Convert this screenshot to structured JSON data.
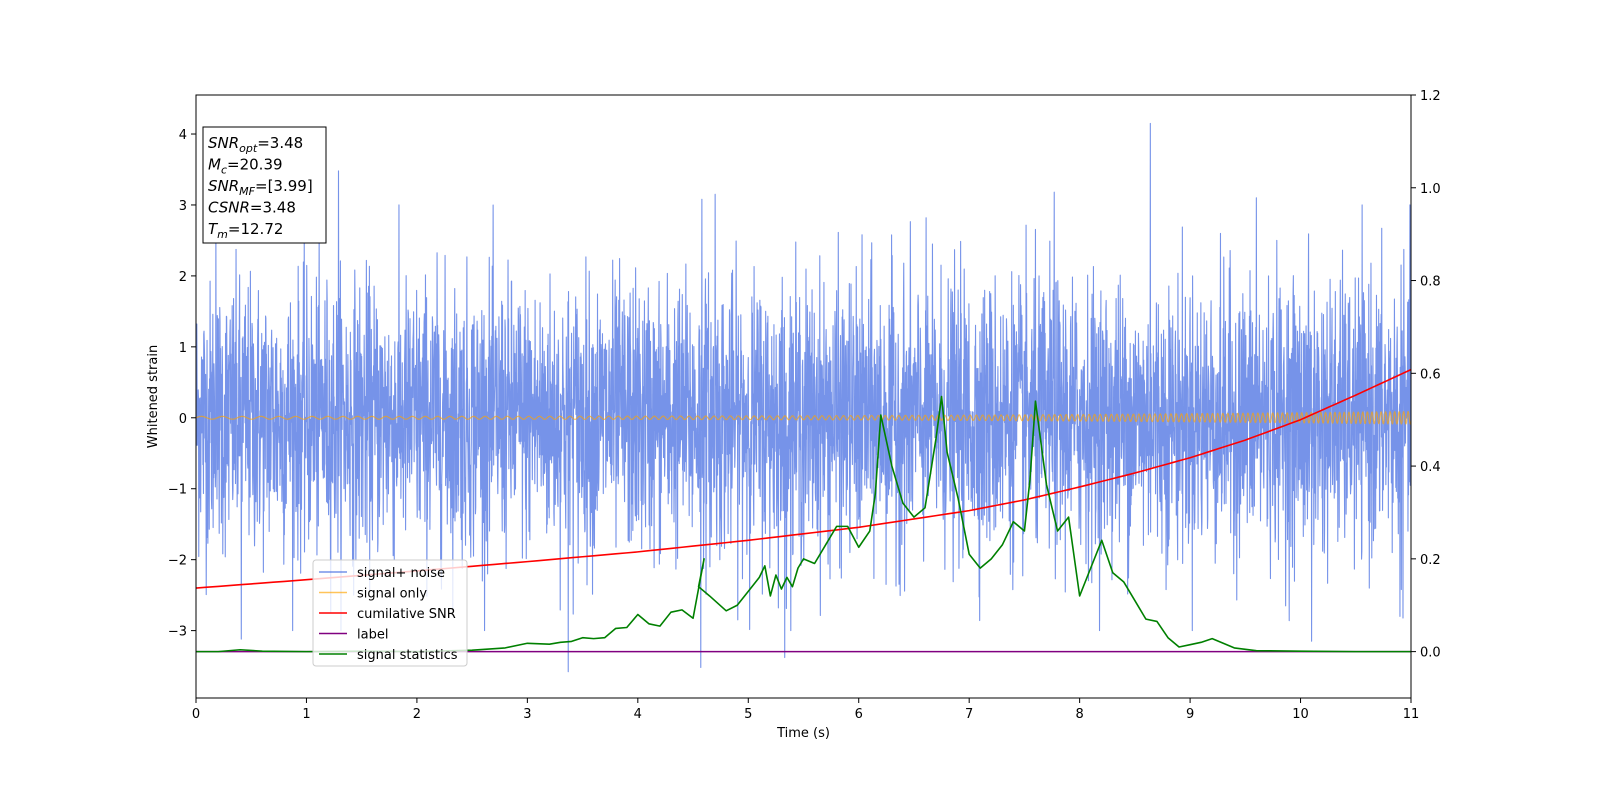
{
  "chart_data": {
    "type": "line",
    "xlabel": "Time (s)",
    "ylabel": "Whitened strain",
    "xlim": [
      0,
      11
    ],
    "ylim_left": [
      -3.95,
      4.55
    ],
    "ylim_right": [
      -0.1,
      1.2
    ],
    "x_ticks": [
      "0",
      "1",
      "2",
      "3",
      "4",
      "5",
      "6",
      "7",
      "8",
      "9",
      "10",
      "11"
    ],
    "y_ticks_left": [
      {
        "value": -3,
        "label": "−3"
      },
      {
        "value": -2,
        "label": "−2"
      },
      {
        "value": -1,
        "label": "−1"
      },
      {
        "value": 0,
        "label": "0"
      },
      {
        "value": 1,
        "label": "1"
      },
      {
        "value": 2,
        "label": "2"
      },
      {
        "value": 3,
        "label": "3"
      },
      {
        "value": 4,
        "label": "4"
      }
    ],
    "y_ticks_right": [
      {
        "value": 0.0,
        "label": "0.0"
      },
      {
        "value": 0.2,
        "label": "0.2"
      },
      {
        "value": 0.4,
        "label": "0.4"
      },
      {
        "value": 0.6,
        "label": "0.6"
      },
      {
        "value": 0.8,
        "label": "0.8"
      },
      {
        "value": 1.0,
        "label": "1.0"
      },
      {
        "value": 1.2,
        "label": "1.2"
      }
    ],
    "grid": false,
    "legend_position": "lower-left",
    "annotation": {
      "lines": [
        {
          "main": "SNR",
          "sub": "opt",
          "rest": "=3.48"
        },
        {
          "main": "M",
          "sub": "c",
          "rest": "=20.39"
        },
        {
          "main": "SNR",
          "sub": "MF",
          "rest": "=[3.99]"
        },
        {
          "main": "CSNR",
          "sub": "",
          "rest": "=3.48"
        },
        {
          "main": "T",
          "sub": "m",
          "rest": "=12.72"
        }
      ]
    },
    "series": [
      {
        "name": "signal+ noise",
        "color": "#4169e1",
        "axis": "left",
        "kind": "noise",
        "typical_range": [
          -1.7,
          1.7
        ],
        "peaks": [
          {
            "x": 0.18,
            "y": 2.6
          },
          {
            "x": 0.41,
            "y": -3.12
          },
          {
            "x": 1.29,
            "y": 3.48
          },
          {
            "x": 3.37,
            "y": -3.58
          },
          {
            "x": 4.58,
            "y": 3.08
          },
          {
            "x": 4.57,
            "y": -3.52
          },
          {
            "x": 4.7,
            "y": 3.15
          },
          {
            "x": 5.33,
            "y": -3.38
          },
          {
            "x": 7.77,
            "y": 3.18
          },
          {
            "x": 8.64,
            "y": 4.15
          },
          {
            "x": 9.6,
            "y": 3.1
          },
          {
            "x": 10.1,
            "y": -3.15
          },
          {
            "x": 10.9,
            "y": -2.8
          }
        ]
      },
      {
        "name": "signal only",
        "color": "#ffa500",
        "axis": "left",
        "kind": "chirp",
        "amplitude_start": 0.02,
        "amplitude_end": 0.09
      },
      {
        "name": "cumilative SNR",
        "color": "#ff0000",
        "axis": "right",
        "x": [
          0,
          1,
          2,
          3,
          4,
          5,
          6,
          7,
          7.5,
          8,
          8.5,
          9,
          9.5,
          10,
          10.5,
          11
        ],
        "y": [
          0.137,
          0.155,
          0.174,
          0.194,
          0.215,
          0.24,
          0.268,
          0.304,
          0.327,
          0.355,
          0.385,
          0.418,
          0.456,
          0.5,
          0.553,
          0.608
        ]
      },
      {
        "name": "label",
        "color": "#800080",
        "axis": "right",
        "x": [
          0,
          11
        ],
        "y": [
          0.0,
          0.0
        ]
      },
      {
        "name": "signal statistics",
        "color": "#008000",
        "axis": "right",
        "x": [
          0,
          0.2,
          0.4,
          0.6,
          1.0,
          1.5,
          2.0,
          2.5,
          2.8,
          3.0,
          3.2,
          3.3,
          3.4,
          3.5,
          3.6,
          3.7,
          3.8,
          3.9,
          4.0,
          4.1,
          4.2,
          4.3,
          4.4,
          4.5,
          4.6,
          4.55,
          4.65,
          4.8,
          4.9,
          5.0,
          5.1,
          5.15,
          5.2,
          5.25,
          5.3,
          5.35,
          5.4,
          5.45,
          5.5,
          5.6,
          5.7,
          5.8,
          5.9,
          6.0,
          6.1,
          6.15,
          6.2,
          6.3,
          6.4,
          6.5,
          6.6,
          6.7,
          6.75,
          6.8,
          6.9,
          7.0,
          7.1,
          7.2,
          7.3,
          7.4,
          7.5,
          7.55,
          7.6,
          7.7,
          7.8,
          7.9,
          8.0,
          8.1,
          8.2,
          8.3,
          8.4,
          8.5,
          8.6,
          8.7,
          8.8,
          8.9,
          9.0,
          9.1,
          9.2,
          9.3,
          9.4,
          9.6,
          10.0,
          10.5,
          11.0
        ],
        "y": [
          0.0,
          0.0,
          0.004,
          0.001,
          0.0,
          0.001,
          0.0,
          0.003,
          0.008,
          0.018,
          0.016,
          0.02,
          0.022,
          0.03,
          0.028,
          0.03,
          0.05,
          0.052,
          0.08,
          0.06,
          0.055,
          0.085,
          0.09,
          0.072,
          0.2,
          0.14,
          0.12,
          0.088,
          0.1,
          0.13,
          0.16,
          0.185,
          0.12,
          0.165,
          0.135,
          0.16,
          0.14,
          0.18,
          0.2,
          0.19,
          0.23,
          0.27,
          0.27,
          0.225,
          0.26,
          0.34,
          0.51,
          0.4,
          0.32,
          0.29,
          0.31,
          0.46,
          0.55,
          0.43,
          0.33,
          0.21,
          0.18,
          0.2,
          0.23,
          0.28,
          0.26,
          0.37,
          0.54,
          0.36,
          0.26,
          0.29,
          0.12,
          0.18,
          0.24,
          0.17,
          0.15,
          0.11,
          0.07,
          0.065,
          0.03,
          0.01,
          0.015,
          0.02,
          0.028,
          0.018,
          0.008,
          0.002,
          0.001,
          0.0,
          0.0
        ]
      }
    ]
  }
}
